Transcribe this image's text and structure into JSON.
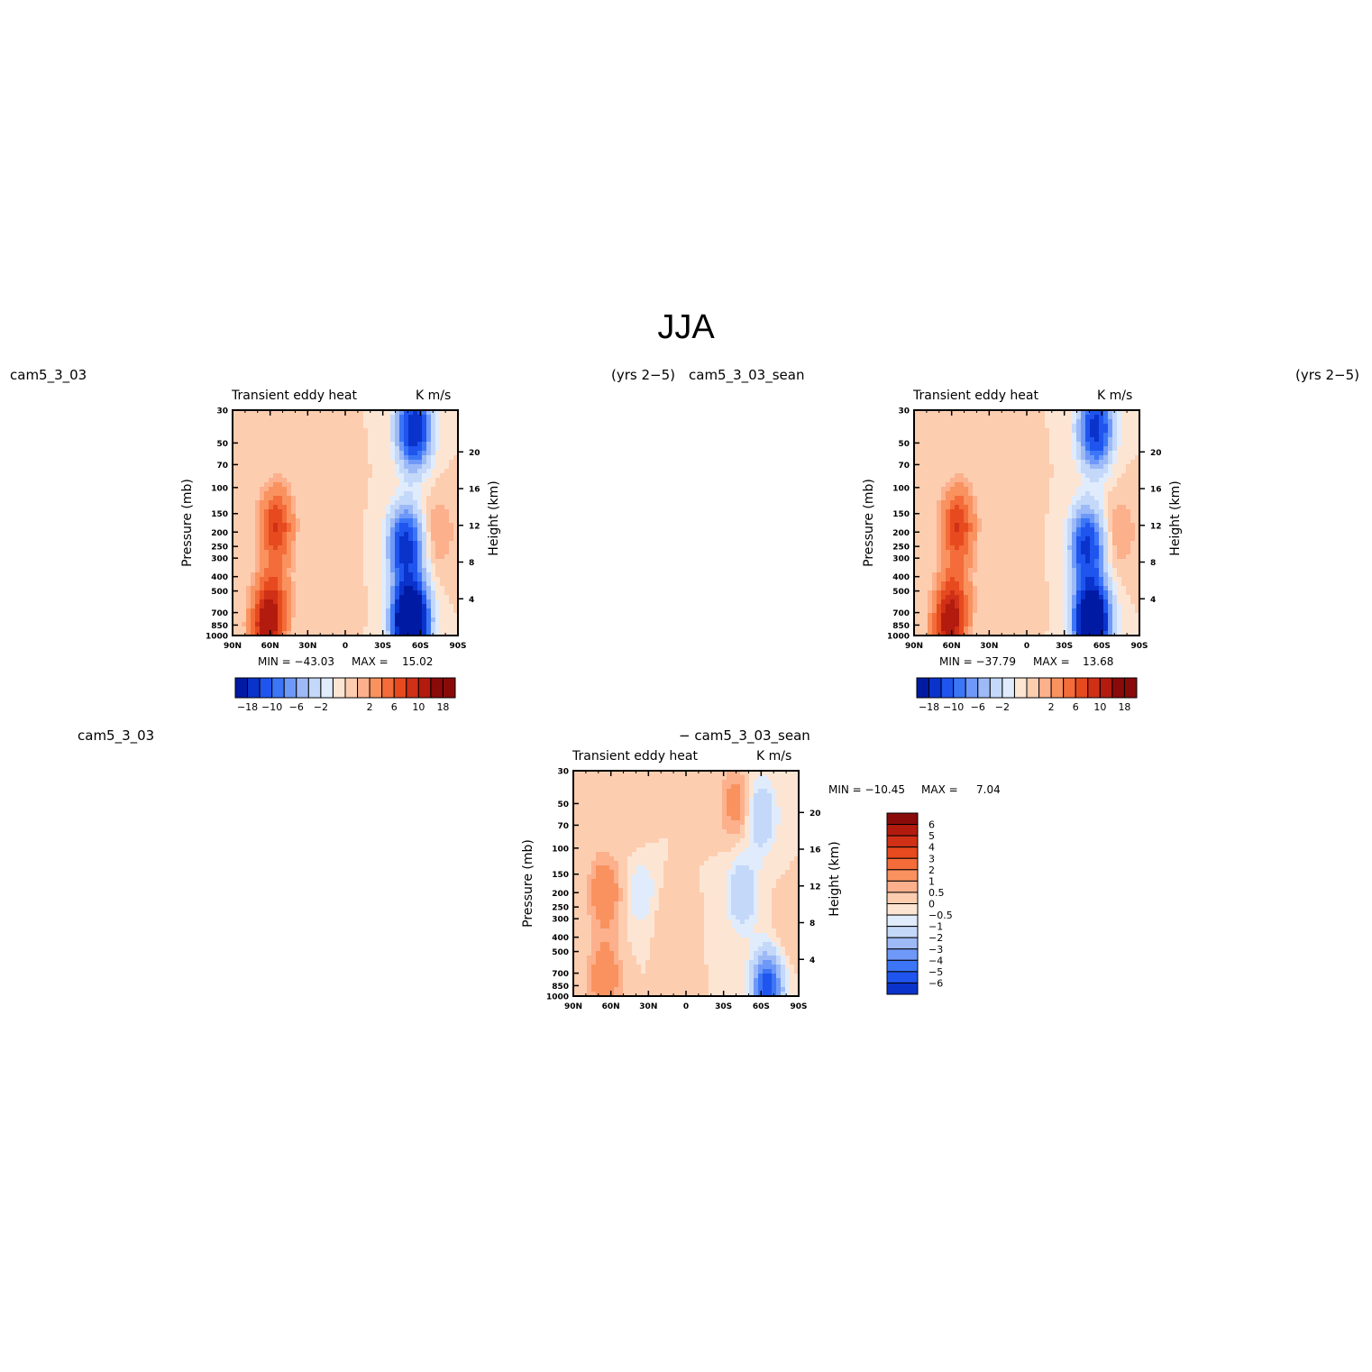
{
  "page_title": "JJA",
  "headers": {
    "top_left_case": "cam5_3_03",
    "top_left_years": "(yrs 2−5)",
    "top_right_case": "cam5_3_03_sean",
    "top_right_years": "(yrs 2−5)",
    "bottom_case": "cam5_3_03",
    "bottom_diff": "− cam5_3_03_sean"
  },
  "colors": {
    "blue_scale": [
      "#000c6e",
      "#001aa3",
      "#0a33cc",
      "#1f55ee",
      "#3c76f7",
      "#6f99f8",
      "#9dbaf7",
      "#c4d8f9",
      "#e0ecfc"
    ],
    "red_scale": [
      "#fde5d3",
      "#fdcdb0",
      "#fcb08c",
      "#f9925f",
      "#f36c3a",
      "#e64a1e",
      "#cf3016",
      "#b21b0e",
      "#8a0a0a"
    ]
  },
  "chart_data": [
    {
      "type": "heatmap",
      "title": "Transient eddy heat",
      "units": "K m/s",
      "ylabel": "Pressure (mb)",
      "ylabel_right": "Height (km)",
      "x_ticks": [
        "90N",
        "60N",
        "30N",
        "0",
        "30S",
        "60S",
        "90S"
      ],
      "y_ticks": [
        30,
        50,
        70,
        100,
        150,
        200,
        250,
        300,
        400,
        500,
        700,
        850,
        1000
      ],
      "y_right_ticks": [
        20,
        16,
        12,
        8,
        4
      ],
      "ylim": [
        1000,
        30
      ],
      "log_scale_y": true,
      "min_label": "MIN = −43.03",
      "max_label": "MAX =",
      "max_value": "15.02",
      "min": -43.03,
      "max": 15.02,
      "colorbar": {
        "levels": [
          -18,
          -14,
          -10,
          -8,
          -6,
          -4,
          -2,
          -1,
          0,
          1,
          2,
          4,
          6,
          8,
          10,
          14,
          18
        ],
        "labels": [
          "−18",
          "−10",
          "−6",
          "−2",
          "2",
          "6",
          "10",
          "18"
        ]
      },
      "features": [
        {
          "lat": 62,
          "p": 850,
          "value": 12
        },
        {
          "lat": 55,
          "p": 180,
          "value": 8
        },
        {
          "lat": 57,
          "p": 500,
          "value": 4
        },
        {
          "lat": 10,
          "p": 100,
          "value": 1
        },
        {
          "lat": 10,
          "p": 600,
          "value": 1
        },
        {
          "lat": -52,
          "p": 800,
          "value": -40
        },
        {
          "lat": -48,
          "p": 250,
          "value": -16
        },
        {
          "lat": -55,
          "p": 40,
          "value": -18
        },
        {
          "lat": -75,
          "p": 200,
          "value": 2
        }
      ]
    },
    {
      "type": "heatmap",
      "title": "Transient eddy heat",
      "units": "K m/s",
      "ylabel": "Pressure (mb)",
      "ylabel_right": "Height (km)",
      "x_ticks": [
        "90N",
        "60N",
        "30N",
        "0",
        "30S",
        "60S",
        "90S"
      ],
      "y_ticks": [
        30,
        50,
        70,
        100,
        150,
        200,
        250,
        300,
        400,
        500,
        700,
        850,
        1000
      ],
      "y_right_ticks": [
        20,
        16,
        12,
        8,
        4
      ],
      "ylim": [
        1000,
        30
      ],
      "log_scale_y": true,
      "min_label": "MIN = −37.79",
      "max_label": "MAX =",
      "max_value": "13.68",
      "min": -37.79,
      "max": 13.68,
      "colorbar": {
        "levels": [
          -18,
          -14,
          -10,
          -8,
          -6,
          -4,
          -2,
          -1,
          0,
          1,
          2,
          4,
          6,
          8,
          10,
          14,
          18
        ],
        "labels": [
          "−18",
          "−10",
          "−6",
          "−2",
          "2",
          "6",
          "10",
          "18"
        ]
      },
      "features": [
        {
          "lat": 62,
          "p": 850,
          "value": 11
        },
        {
          "lat": 55,
          "p": 180,
          "value": 8
        },
        {
          "lat": 57,
          "p": 500,
          "value": 4
        },
        {
          "lat": 10,
          "p": 100,
          "value": 1
        },
        {
          "lat": 10,
          "p": 600,
          "value": 1
        },
        {
          "lat": -52,
          "p": 800,
          "value": -35
        },
        {
          "lat": -48,
          "p": 250,
          "value": -15
        },
        {
          "lat": -55,
          "p": 40,
          "value": -16
        },
        {
          "lat": -75,
          "p": 200,
          "value": 2
        }
      ]
    },
    {
      "type": "heatmap",
      "title": "Transient eddy heat",
      "units": "K m/s",
      "ylabel": "Pressure (mb)",
      "ylabel_right": "Height (km)",
      "x_ticks": [
        "90N",
        "60N",
        "30N",
        "0",
        "30S",
        "60S",
        "90S"
      ],
      "y_ticks": [
        30,
        50,
        70,
        100,
        150,
        200,
        250,
        300,
        400,
        500,
        700,
        850,
        1000
      ],
      "y_right_ticks": [
        20,
        16,
        12,
        8,
        4
      ],
      "ylim": [
        1000,
        30
      ],
      "log_scale_y": true,
      "min_label": "MIN = −10.45",
      "max_label": "MAX =",
      "max_value": "7.04",
      "min": -10.45,
      "max": 7.04,
      "colorbar": {
        "levels": [
          -6,
          -5,
          -4,
          -3,
          -2,
          -1,
          -0.5,
          0,
          0.5,
          1,
          2,
          3,
          4,
          5,
          6
        ],
        "labels": [
          "6",
          "5",
          "4",
          "3",
          "2",
          "1",
          "0.5",
          "0",
          "−0.5",
          "−1",
          "−2",
          "−3",
          "−4",
          "−5",
          "−6"
        ]
      },
      "features": [
        {
          "lat": 65,
          "p": 200,
          "value": 2
        },
        {
          "lat": 65,
          "p": 750,
          "value": 2
        },
        {
          "lat": 40,
          "p": 60,
          "value": 0.5
        },
        {
          "lat": 15,
          "p": 300,
          "value": 0.5
        },
        {
          "lat": -40,
          "p": 50,
          "value": 1.5
        },
        {
          "lat": -60,
          "p": 60,
          "value": -2
        },
        {
          "lat": -45,
          "p": 200,
          "value": -2
        },
        {
          "lat": -65,
          "p": 900,
          "value": -6
        },
        {
          "lat": -80,
          "p": 400,
          "value": 0.5
        },
        {
          "lat": 35,
          "p": 200,
          "value": -1
        }
      ]
    }
  ]
}
